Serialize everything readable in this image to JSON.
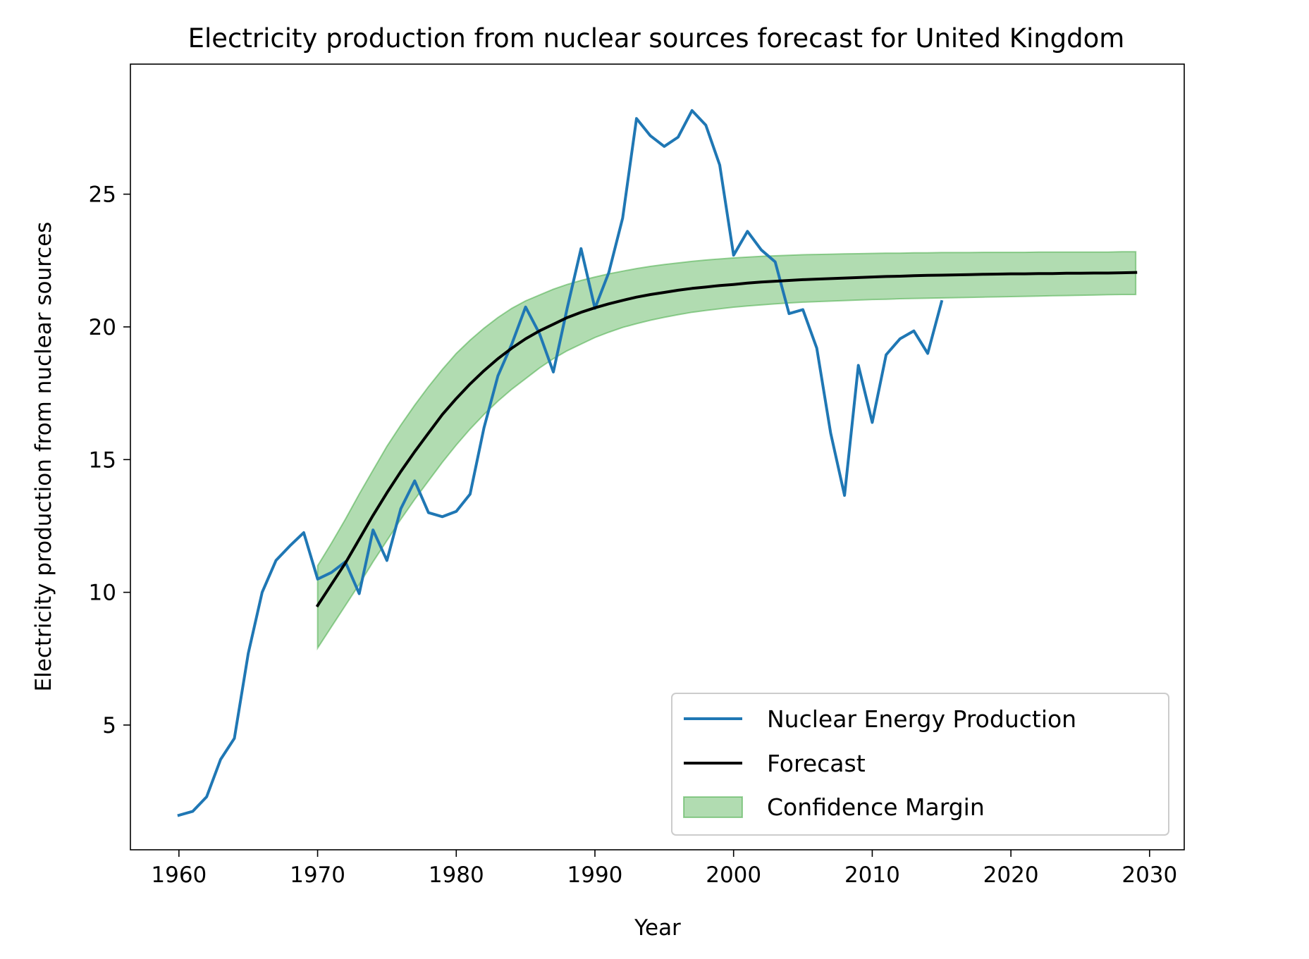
{
  "chart_data": {
    "type": "line",
    "title": "Electricity production from nuclear sources forecast for United Kingdom",
    "xlabel": "Year",
    "ylabel": "Electricity production from nuclear sources",
    "xlim": [
      1956.5,
      2032.5
    ],
    "ylim": [
      0.3,
      29.9
    ],
    "xticks": [
      1960,
      1970,
      1980,
      1990,
      2000,
      2010,
      2020,
      2030
    ],
    "yticks": [
      5,
      10,
      15,
      20,
      25
    ],
    "grid": false,
    "legend_position": "lower-right",
    "colors": {
      "actual": "#1f77b4",
      "forecast": "#000000",
      "band_fill": "#2ca02c",
      "band_edge": "#2ca02c"
    },
    "legend": [
      {
        "label": "Nuclear Energy Production",
        "kind": "line",
        "color": "#1f77b4"
      },
      {
        "label": "Forecast",
        "kind": "line",
        "color": "#000000"
      },
      {
        "label": "Confidence Margin",
        "kind": "band",
        "color": "#2ca02c"
      }
    ],
    "series": [
      {
        "name": "Nuclear Energy Production",
        "x": [
          1960,
          1961,
          1962,
          1963,
          1964,
          1965,
          1966,
          1967,
          1968,
          1969,
          1970,
          1971,
          1972,
          1973,
          1974,
          1975,
          1976,
          1977,
          1978,
          1979,
          1980,
          1981,
          1982,
          1983,
          1984,
          1985,
          1986,
          1987,
          1988,
          1989,
          1990,
          1991,
          1992,
          1993,
          1994,
          1995,
          1996,
          1997,
          1998,
          1999,
          2000,
          2001,
          2002,
          2003,
          2004,
          2005,
          2006,
          2007,
          2008,
          2009,
          2010,
          2011,
          2012,
          2013,
          2014,
          2015
        ],
        "y": [
          1.6,
          1.75,
          2.3,
          3.7,
          4.5,
          7.7,
          10.0,
          11.2,
          11.75,
          12.25,
          10.5,
          10.75,
          11.15,
          9.95,
          12.35,
          11.2,
          13.15,
          14.2,
          13.0,
          12.85,
          13.05,
          13.7,
          16.2,
          18.15,
          19.35,
          20.75,
          19.75,
          18.3,
          20.7,
          22.95,
          20.7,
          22.05,
          24.1,
          27.85,
          27.2,
          26.8,
          27.15,
          28.15,
          27.6,
          26.1,
          22.7,
          23.6,
          22.9,
          22.45,
          20.5,
          20.65,
          19.2,
          16.0,
          13.65,
          18.55,
          16.4,
          18.95,
          19.55,
          19.85,
          19.0,
          20.95
        ]
      },
      {
        "name": "Forecast",
        "x": [
          1970,
          1971,
          1972,
          1973,
          1974,
          1975,
          1976,
          1977,
          1978,
          1979,
          1980,
          1981,
          1982,
          1983,
          1984,
          1985,
          1986,
          1987,
          1988,
          1989,
          1990,
          1991,
          1992,
          1993,
          1994,
          1995,
          1996,
          1997,
          1998,
          1999,
          2000,
          2001,
          2002,
          2003,
          2004,
          2005,
          2006,
          2007,
          2008,
          2009,
          2010,
          2011,
          2012,
          2013,
          2014,
          2015,
          2016,
          2017,
          2018,
          2019,
          2020,
          2021,
          2022,
          2023,
          2024,
          2025,
          2026,
          2027,
          2028,
          2029
        ],
        "y": [
          9.5,
          10.3,
          11.1,
          12.0,
          12.9,
          13.75,
          14.55,
          15.3,
          16.0,
          16.7,
          17.3,
          17.85,
          18.35,
          18.8,
          19.2,
          19.55,
          19.85,
          20.1,
          20.35,
          20.55,
          20.72,
          20.87,
          21.0,
          21.12,
          21.22,
          21.3,
          21.38,
          21.45,
          21.5,
          21.56,
          21.6,
          21.65,
          21.69,
          21.72,
          21.75,
          21.78,
          21.8,
          21.82,
          21.84,
          21.86,
          21.88,
          21.9,
          21.91,
          21.93,
          21.94,
          21.95,
          21.96,
          21.97,
          21.98,
          21.99,
          22.0,
          22.0,
          22.01,
          22.01,
          22.02,
          22.02,
          22.03,
          22.03,
          22.04,
          22.05
        ]
      }
    ],
    "band": {
      "name": "Confidence Margin",
      "x": [
        1970,
        1971,
        1972,
        1973,
        1974,
        1975,
        1976,
        1977,
        1978,
        1979,
        1980,
        1981,
        1982,
        1983,
        1984,
        1985,
        1986,
        1987,
        1988,
        1989,
        1990,
        1991,
        1992,
        1993,
        1994,
        1995,
        1996,
        1997,
        1998,
        1999,
        2000,
        2001,
        2002,
        2003,
        2004,
        2005,
        2006,
        2007,
        2008,
        2009,
        2010,
        2011,
        2012,
        2013,
        2014,
        2015,
        2016,
        2017,
        2018,
        2019,
        2020,
        2021,
        2022,
        2023,
        2024,
        2025,
        2026,
        2027,
        2028,
        2029
      ],
      "upper": [
        11.0,
        11.85,
        12.75,
        13.7,
        14.6,
        15.5,
        16.3,
        17.05,
        17.75,
        18.4,
        19.0,
        19.5,
        19.95,
        20.35,
        20.7,
        20.98,
        21.2,
        21.42,
        21.6,
        21.75,
        21.88,
        22.0,
        22.1,
        22.2,
        22.28,
        22.35,
        22.41,
        22.47,
        22.52,
        22.56,
        22.6,
        22.63,
        22.66,
        22.68,
        22.7,
        22.72,
        22.73,
        22.74,
        22.75,
        22.76,
        22.77,
        22.78,
        22.78,
        22.79,
        22.79,
        22.8,
        22.8,
        22.8,
        22.81,
        22.81,
        22.81,
        22.81,
        22.82,
        22.82,
        22.82,
        22.82,
        22.82,
        22.82,
        22.83,
        22.83
      ],
      "lower": [
        7.9,
        8.7,
        9.5,
        10.3,
        11.15,
        11.95,
        12.75,
        13.5,
        14.2,
        14.9,
        15.55,
        16.15,
        16.7,
        17.2,
        17.65,
        18.05,
        18.45,
        18.8,
        19.1,
        19.35,
        19.6,
        19.8,
        19.98,
        20.12,
        20.25,
        20.36,
        20.46,
        20.55,
        20.62,
        20.68,
        20.74,
        20.79,
        20.83,
        20.87,
        20.9,
        20.93,
        20.95,
        20.97,
        20.99,
        21.01,
        21.03,
        21.04,
        21.06,
        21.07,
        21.08,
        21.09,
        21.1,
        21.11,
        21.12,
        21.13,
        21.14,
        21.15,
        21.16,
        21.17,
        21.18,
        21.19,
        21.2,
        21.21,
        21.22,
        21.22
      ]
    }
  }
}
